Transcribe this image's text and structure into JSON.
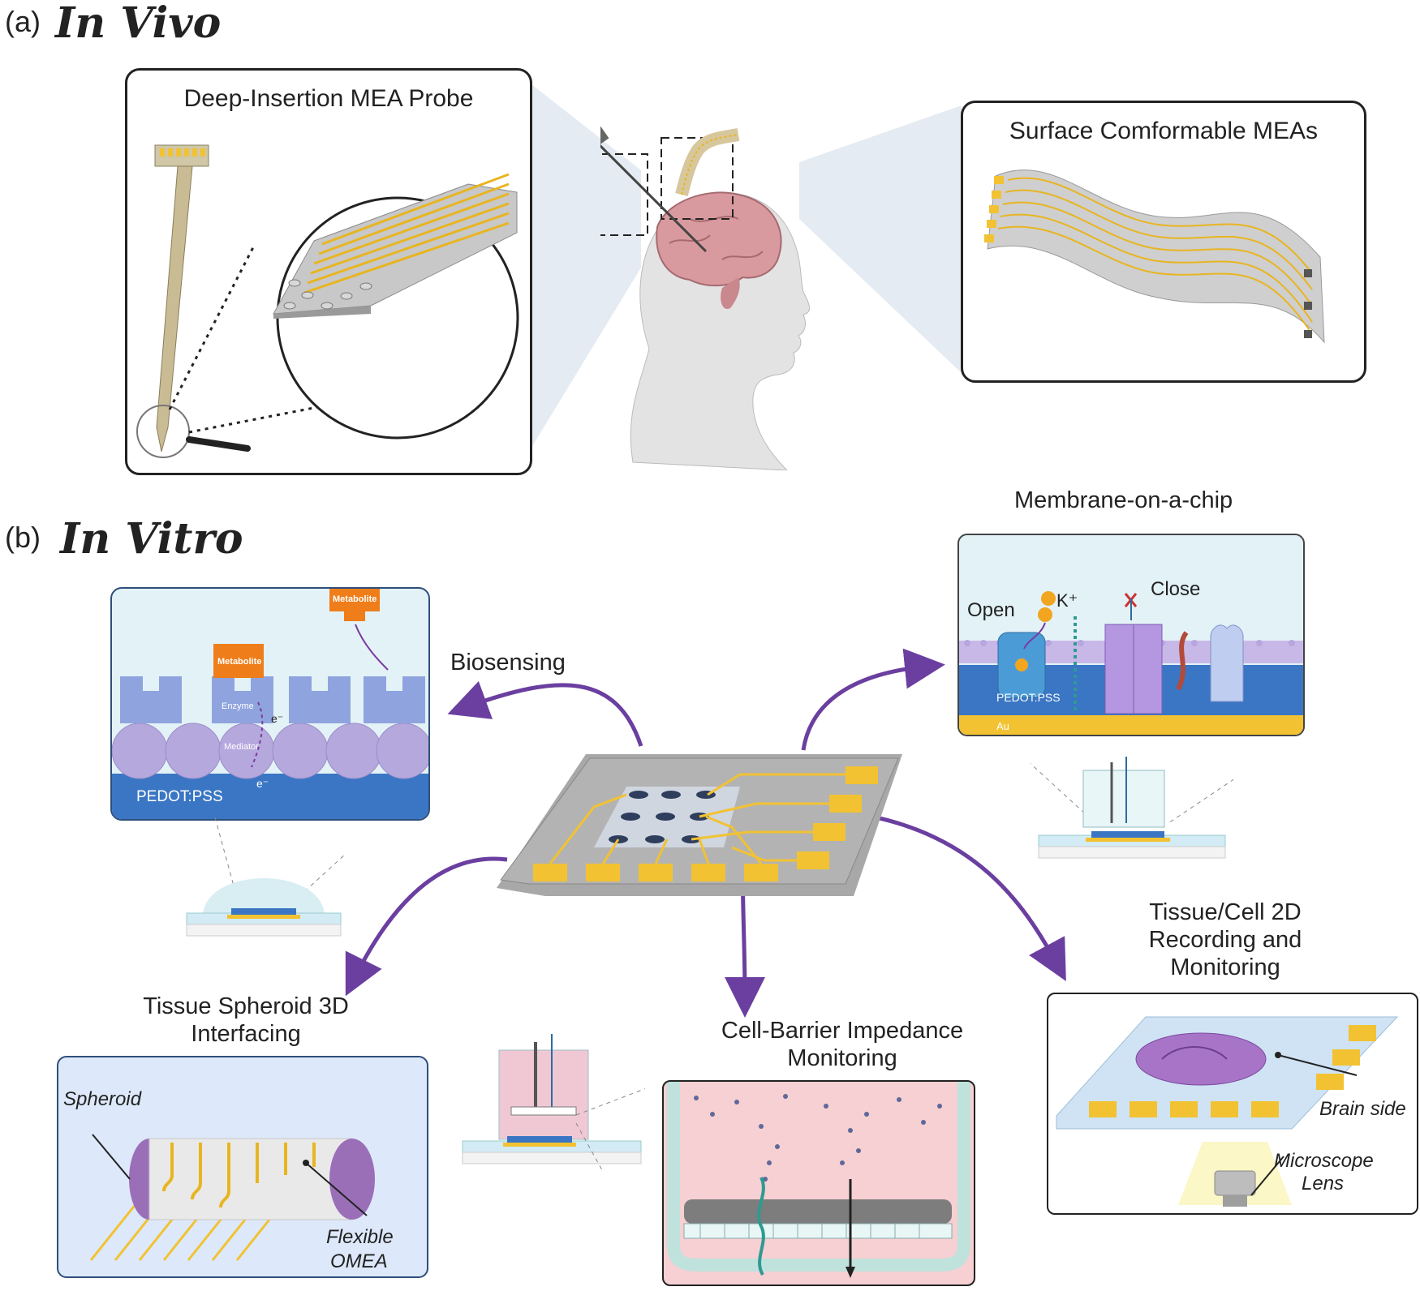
{
  "panel_a": {
    "letter": "(a)",
    "title": "In Vivo"
  },
  "panel_b": {
    "letter": "(b)",
    "title": "In Vitro"
  },
  "deep_probe": {
    "title": "Deep-Insertion MEA Probe"
  },
  "surface_meas": {
    "title": "Surface Comformable MEAs"
  },
  "membrane": {
    "title": "Membrane-on-a-chip",
    "open": "Open",
    "close": "Close",
    "ion": "K⁺",
    "substrate": "PEDOT:PSS",
    "metal": "Au"
  },
  "biosensing": {
    "title": "Biosensing",
    "metabolite": "Metabolite",
    "enzyme": "Enzyme",
    "mediator": "Mediator",
    "electron": "e⁻",
    "substrate": "PEDOT:PSS"
  },
  "spheroid": {
    "title_line1": "Tissue Spheroid 3D",
    "title_line2": "Interfacing",
    "label_spheroid": "Spheroid",
    "label_flex_1": "Flexible",
    "label_flex_2": "OMEA"
  },
  "barrier": {
    "title_line1": "Cell-Barrier Impedance",
    "title_line2": "Monitoring"
  },
  "tissue2d": {
    "title_line1": "Tissue/Cell 2D",
    "title_line2": "Recording and",
    "title_line3": "Monitoring",
    "label_brain": "Brain side",
    "label_lens_1": "Microscope",
    "label_lens_2": "Lens"
  },
  "colors": {
    "gold": "#f2c232",
    "purple_arrow": "#6b3fa0",
    "pedot_blue": "#3a76c4",
    "chip_gray": "#a3a3a3"
  }
}
